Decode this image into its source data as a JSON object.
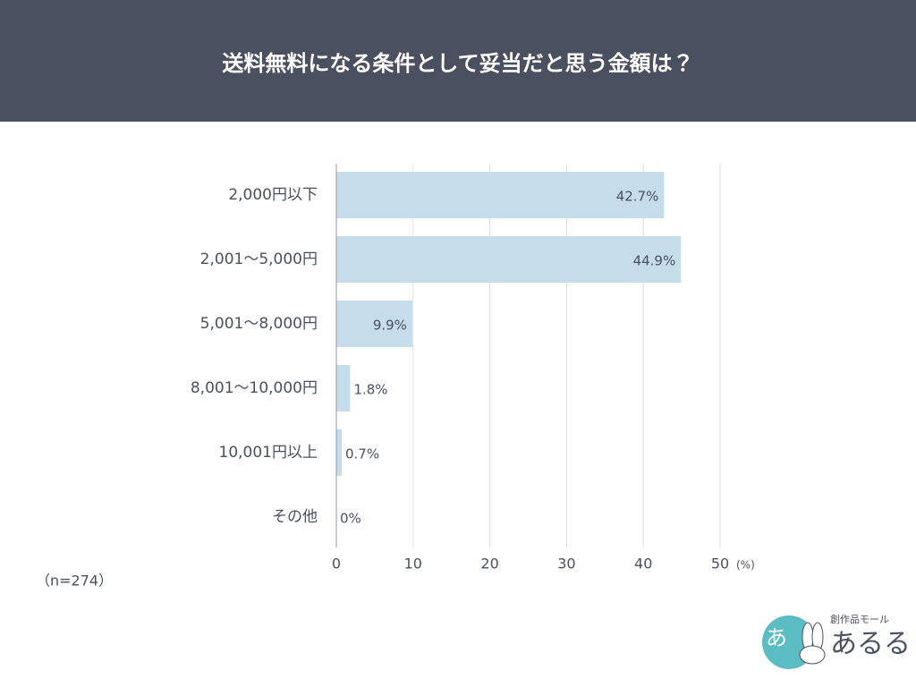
{
  "chart_data": {
    "type": "hbar",
    "title": "送料無料になる条件として妥当だと思う金額は？",
    "categories": [
      "2,000円以下",
      "2,001～5,000円",
      "5,001～8,000円",
      "8,001～10,000円",
      "10,001円以上",
      "その他"
    ],
    "values": [
      42.7,
      44.9,
      9.9,
      1.8,
      0.7,
      0
    ],
    "value_labels": [
      "42.7%",
      "44.9%",
      "9.9%",
      "1.8%",
      "0.7%",
      "0%"
    ],
    "color": "#c5dcea",
    "xlim": [
      0,
      50
    ],
    "xticks": [
      0,
      10,
      20,
      30,
      40,
      50
    ],
    "xlabel": "(%)",
    "grid": true,
    "note": "（n=274）"
  },
  "logo": {
    "tagline": "創作品モール",
    "name": "あるる"
  }
}
